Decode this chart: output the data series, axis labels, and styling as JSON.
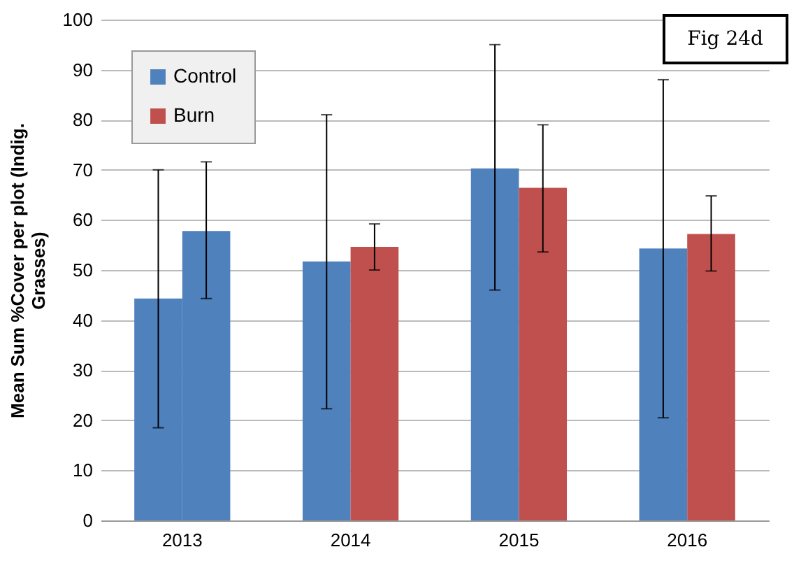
{
  "chart_data": {
    "type": "bar",
    "ylabel": "Mean Sum %Cover per plot (Indig. Grasses)",
    "annotations": [
      "Fig 24d"
    ],
    "categories": [
      "2013",
      "2014",
      "2015",
      "2016"
    ],
    "series": [
      {
        "name": "Control",
        "color": "#4f81bd",
        "values": [
          44.3,
          51.7,
          70.3,
          54.3
        ],
        "errors": [
          [
            18.5,
            70
          ],
          [
            22.3,
            81
          ],
          [
            46,
            95
          ],
          [
            20.5,
            88
          ]
        ]
      },
      {
        "name": "Burn",
        "color": "#c0504d",
        "colors": [
          "#4f81bd",
          "#c0504d",
          "#c0504d",
          "#c0504d"
        ],
        "values": [
          57.8,
          54.6,
          66.4,
          57.2
        ],
        "errors": [
          [
            44.3,
            71.6
          ],
          [
            50,
            59.2
          ],
          [
            53.6,
            79
          ],
          [
            49.8,
            64.8
          ]
        ]
      }
    ],
    "ylim": [
      0,
      100
    ],
    "yticks": [
      0,
      10,
      20,
      30,
      40,
      50,
      60,
      70,
      80,
      90,
      100
    ],
    "grid": "y",
    "legend": "top left"
  }
}
